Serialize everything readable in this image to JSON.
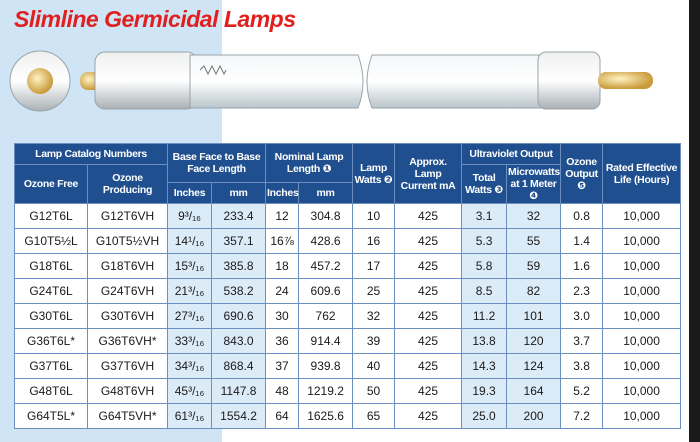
{
  "header": {
    "title": "Slimline Germicidal Lamps"
  },
  "table": {
    "header": [
      "Lamp Catalog Numbers",
      "Ozone Free",
      "Ozone Producing",
      "Base Face to Base Face Length",
      "Inches",
      "mm",
      "Nominal Lamp Length ❶",
      "Inches",
      "mm",
      "Lamp Watts ❷",
      "Approx. Lamp Current mA",
      "Ultraviolet Output",
      "Total Watts ❸",
      "Microwatts at 1 Meter ❹",
      "Ozone Output ❺",
      "Rated Effective Life (Hours)"
    ],
    "rows": [
      [
        "G12T6L",
        "G12T6VH",
        "9³/₁₆",
        "233.4",
        "12",
        "304.8",
        "10",
        "425",
        "3.1",
        "32",
        "0.8",
        "10,000"
      ],
      [
        "G10T5½L",
        "G10T5½VH",
        "14¹/₁₆",
        "357.1",
        "16⅞",
        "428.6",
        "16",
        "425",
        "5.3",
        "55",
        "1.4",
        "10,000"
      ],
      [
        "G18T6L",
        "G18T6VH",
        "15³/₁₆",
        "385.8",
        "18",
        "457.2",
        "17",
        "425",
        "5.8",
        "59",
        "1.6",
        "10,000"
      ],
      [
        "G24T6L",
        "G24T6VH",
        "21³/₁₆",
        "538.2",
        "24",
        "609.6",
        "25",
        "425",
        "8.5",
        "82",
        "2.3",
        "10,000"
      ],
      [
        "G30T6L",
        "G30T6VH",
        "27³/₁₆",
        "690.6",
        "30",
        "762",
        "32",
        "425",
        "11.2",
        "101",
        "3.0",
        "10,000"
      ],
      [
        "G36T6L*",
        "G36T6VH*",
        "33³/₁₆",
        "843.0",
        "36",
        "914.4",
        "39",
        "425",
        "13.8",
        "120",
        "3.7",
        "10,000"
      ],
      [
        "G37T6L",
        "G37T6VH",
        "34³/₁₆",
        "868.4",
        "37",
        "939.8",
        "40",
        "425",
        "14.3",
        "124",
        "3.8",
        "10,000"
      ],
      [
        "G48T6L",
        "G48T6VH",
        "45³/₁₆",
        "1147.8",
        "48",
        "1219.2",
        "50",
        "425",
        "19.3",
        "164",
        "5.2",
        "10,000"
      ],
      [
        "G64T5L*",
        "G64T5VH*",
        "61³/₁₆",
        "1554.2",
        "64",
        "1625.6",
        "65",
        "425",
        "25.0",
        "200",
        "7.2",
        "10,000"
      ]
    ]
  }
}
